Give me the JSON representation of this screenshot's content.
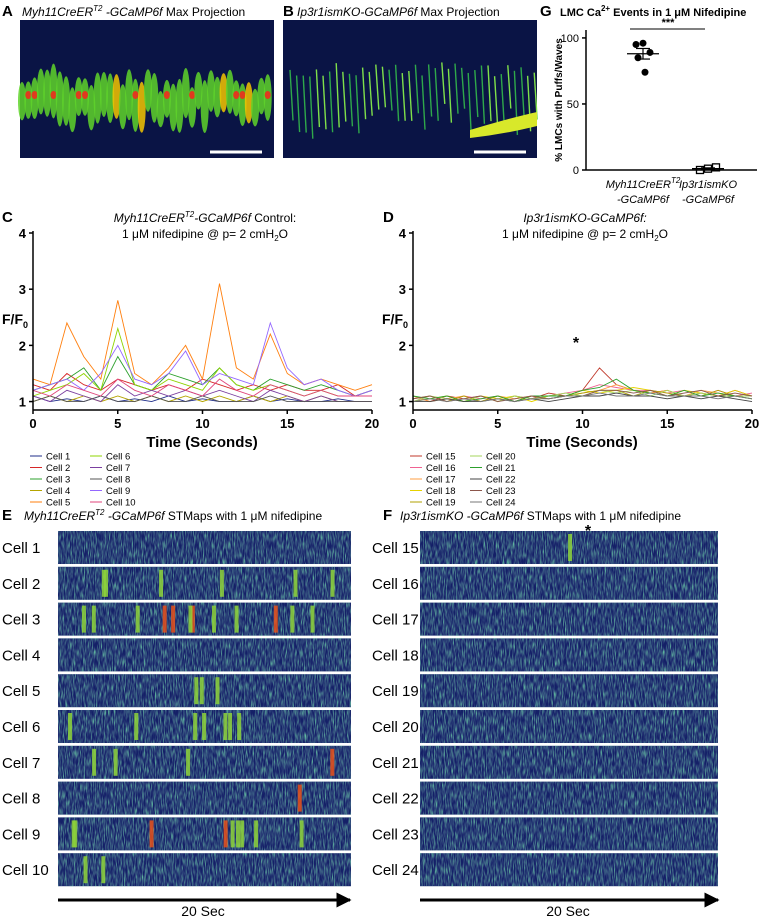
{
  "panels": {
    "A": {
      "label": "A",
      "title": [
        "Myh11CreER",
        "T2",
        " -GCaMP6f",
        " Max Projection"
      ]
    },
    "B": {
      "label": "B",
      "title": [
        "Ip3r1ismKO-GCaMP6f",
        " Max Projection"
      ]
    },
    "E": {
      "label": "E",
      "title": [
        "Myh11CreER",
        "T2",
        " -GCaMP6f",
        " STMaps with 1 μM nifedipine"
      ],
      "cells": [
        "Cell 1",
        "Cell 2",
        "Cell 3",
        "Cell 4",
        "Cell 5",
        "Cell 6",
        "Cell 7",
        "Cell 8",
        "Cell 9",
        "Cell 10"
      ],
      "time_label": "20 Sec"
    },
    "F": {
      "label": "F",
      "title": [
        "Ip3r1ismKO -GCaMP6f",
        " STMaps with 1 μM nifedipine"
      ],
      "cells": [
        "Cell 15",
        "Cell 16",
        "Cell 17",
        "Cell 18",
        "Cell 19",
        "Cell 20",
        "Cell 21",
        "Cell 22",
        "Cell 23",
        "Cell 24"
      ],
      "time_label": "20 Sec",
      "annotation": "*"
    }
  },
  "chart_data": [
    {
      "type": "line",
      "label": "C",
      "title": [
        [
          "Myh11CreER",
          "T2",
          "-GCaMP6f",
          " Control:"
        ],
        [
          "1 μM nifedipine @ p= 2 cmH",
          "2",
          "O"
        ]
      ],
      "ylabel": [
        "F/F",
        "0"
      ],
      "xlabel": "Time (Seconds)",
      "xlim": [
        0,
        20
      ],
      "xticks": [
        0,
        5,
        10,
        15,
        20
      ],
      "ylim": [
        0.85,
        4
      ],
      "yticks": [
        1,
        2,
        3,
        4
      ],
      "x": [
        0,
        1,
        2,
        3,
        4,
        5,
        6,
        7,
        8,
        9,
        10,
        11,
        12,
        13,
        14,
        15,
        16,
        17,
        18,
        19,
        20
      ],
      "series": [
        {
          "name": "Cell 1",
          "color": "#1f2d8a",
          "values": [
            1.1,
            1.0,
            1.05,
            1.0,
            1.1,
            1.0,
            1.05,
            1.0,
            1.1,
            1.0,
            1.05,
            1.0,
            1.0,
            1.1,
            1.0,
            1.05,
            1.0,
            1.0,
            1.05,
            1.0,
            1.0
          ]
        },
        {
          "name": "Cell 2",
          "color": "#d62728",
          "values": [
            1.3,
            1.2,
            1.5,
            1.3,
            1.2,
            1.4,
            1.3,
            1.2,
            1.3,
            1.2,
            1.4,
            1.3,
            1.2,
            1.3,
            1.2,
            1.3,
            1.2,
            1.2,
            1.3,
            1.1,
            1.2
          ]
        },
        {
          "name": "Cell 3",
          "color": "#2ca02c",
          "values": [
            1.2,
            1.3,
            1.4,
            1.6,
            1.2,
            1.8,
            1.3,
            1.2,
            1.5,
            1.4,
            1.3,
            1.6,
            1.3,
            1.2,
            1.4,
            1.3,
            1.2,
            1.3,
            1.2,
            1.1,
            1.2
          ]
        },
        {
          "name": "Cell 4",
          "color": "#b5a400",
          "values": [
            1.0,
            1.1,
            1.0,
            1.1,
            1.0,
            1.1,
            1.0,
            1.1,
            1.0,
            1.1,
            1.0,
            1.1,
            1.0,
            1.1,
            1.0,
            1.1,
            1.0,
            1.1,
            1.0,
            1.0,
            1.0
          ]
        },
        {
          "name": "Cell 5",
          "color": "#ff7f0e",
          "values": [
            1.4,
            1.3,
            2.4,
            1.8,
            1.4,
            2.8,
            1.5,
            1.3,
            1.6,
            2.0,
            1.4,
            3.1,
            1.6,
            1.4,
            2.2,
            1.5,
            1.3,
            1.4,
            1.3,
            1.2,
            1.3
          ]
        },
        {
          "name": "Cell 6",
          "color": "#8fd400",
          "values": [
            1.1,
            1.2,
            1.3,
            1.5,
            1.2,
            2.3,
            1.3,
            1.2,
            1.4,
            1.3,
            1.2,
            1.6,
            1.3,
            1.2,
            1.3,
            1.2,
            1.1,
            1.2,
            1.1,
            1.1,
            1.1
          ]
        },
        {
          "name": "Cell 7",
          "color": "#7b3fa0",
          "values": [
            1.1,
            1.0,
            1.2,
            1.1,
            1.0,
            1.3,
            1.1,
            1.2,
            1.1,
            1.2,
            1.1,
            1.2,
            1.1,
            1.0,
            1.2,
            1.1,
            1.0,
            1.1,
            1.0,
            1.0,
            1.0
          ]
        },
        {
          "name": "Cell 8",
          "color": "#555555",
          "values": [
            1.0,
            1.1,
            1.0,
            1.0,
            1.1,
            1.0,
            1.0,
            1.1,
            1.0,
            1.0,
            1.1,
            1.0,
            1.0,
            1.0,
            1.1,
            1.0,
            1.0,
            1.0,
            1.0,
            1.0,
            1.0
          ]
        },
        {
          "name": "Cell 9",
          "color": "#9467ff",
          "values": [
            1.2,
            1.3,
            1.4,
            1.2,
            1.5,
            2.0,
            1.4,
            1.3,
            1.5,
            1.9,
            1.3,
            1.5,
            1.4,
            1.3,
            2.4,
            1.6,
            1.3,
            1.4,
            1.2,
            1.1,
            1.2
          ]
        },
        {
          "name": "Cell 10",
          "color": "#e0457b",
          "values": [
            1.2,
            1.1,
            1.3,
            1.2,
            1.1,
            1.4,
            1.2,
            1.1,
            1.3,
            1.2,
            1.1,
            1.4,
            1.2,
            1.1,
            1.3,
            1.2,
            1.1,
            1.2,
            1.1,
            1.1,
            1.1
          ]
        }
      ]
    },
    {
      "type": "line",
      "label": "D",
      "title": [
        [
          "Ip3r1ismKO-GCaMP6f:"
        ],
        [
          "1 μM nifedipine @ p= 2 cmH",
          "2",
          "O"
        ]
      ],
      "ylabel": [
        "F/F",
        "0"
      ],
      "xlabel": "Time (Seconds)",
      "annotation": "*",
      "xlim": [
        0,
        20
      ],
      "xticks": [
        0,
        5,
        10,
        15,
        20
      ],
      "ylim": [
        0.85,
        4
      ],
      "yticks": [
        1,
        2,
        3,
        4
      ],
      "x": [
        0,
        1,
        2,
        3,
        4,
        5,
        6,
        7,
        8,
        9,
        10,
        11,
        12,
        13,
        14,
        15,
        16,
        17,
        18,
        19,
        20
      ],
      "series": [
        {
          "name": "Cell 15",
          "color": "#c0392b",
          "values": [
            1.1,
            1.0,
            1.1,
            1.05,
            1.1,
            1.0,
            1.1,
            1.05,
            1.15,
            1.1,
            1.2,
            1.6,
            1.3,
            1.2,
            1.15,
            1.2,
            1.1,
            1.15,
            1.1,
            1.2,
            1.1
          ]
        },
        {
          "name": "Cell 16",
          "color": "#f06292",
          "values": [
            1.0,
            1.1,
            1.0,
            1.1,
            1.05,
            1.1,
            1.0,
            1.1,
            1.1,
            1.15,
            1.2,
            1.3,
            1.25,
            1.2,
            1.2,
            1.15,
            1.2,
            1.1,
            1.2,
            1.1,
            1.15
          ]
        },
        {
          "name": "Cell 17",
          "color": "#ff9f43",
          "values": [
            1.1,
            1.0,
            1.05,
            1.1,
            1.0,
            1.1,
            1.05,
            1.1,
            1.1,
            1.1,
            1.15,
            1.2,
            1.3,
            1.2,
            1.15,
            1.2,
            1.1,
            1.2,
            1.15,
            1.1,
            1.1
          ]
        },
        {
          "name": "Cell 18",
          "color": "#e6d200",
          "values": [
            1.0,
            1.05,
            1.1,
            1.0,
            1.1,
            1.05,
            1.1,
            1.0,
            1.1,
            1.1,
            1.2,
            1.15,
            1.2,
            1.25,
            1.2,
            1.1,
            1.2,
            1.15,
            1.1,
            1.2,
            1.1
          ]
        },
        {
          "name": "Cell 19",
          "color": "#b0a000",
          "values": [
            1.05,
            1.1,
            1.0,
            1.1,
            1.0,
            1.1,
            1.0,
            1.1,
            1.05,
            1.1,
            1.15,
            1.2,
            1.2,
            1.1,
            1.2,
            1.15,
            1.1,
            1.1,
            1.2,
            1.1,
            1.05
          ]
        },
        {
          "name": "Cell 20",
          "color": "#a4d65e",
          "values": [
            1.0,
            1.1,
            1.05,
            1.0,
            1.1,
            1.0,
            1.1,
            1.05,
            1.1,
            1.15,
            1.1,
            1.2,
            1.15,
            1.2,
            1.1,
            1.2,
            1.1,
            1.15,
            1.1,
            1.1,
            1.1
          ]
        },
        {
          "name": "Cell 21",
          "color": "#2ca02c",
          "values": [
            1.1,
            1.05,
            1.1,
            1.0,
            1.05,
            1.1,
            1.0,
            1.1,
            1.1,
            1.1,
            1.2,
            1.25,
            1.4,
            1.2,
            1.15,
            1.1,
            1.2,
            1.1,
            1.15,
            1.1,
            1.05
          ]
        },
        {
          "name": "Cell 22",
          "color": "#444444",
          "values": [
            1.0,
            1.0,
            1.05,
            1.0,
            1.0,
            1.05,
            1.0,
            1.05,
            1.0,
            1.05,
            1.1,
            1.1,
            1.15,
            1.1,
            1.1,
            1.05,
            1.1,
            1.05,
            1.1,
            1.05,
            1.0
          ]
        },
        {
          "name": "Cell 23",
          "color": "#8c564b",
          "values": [
            1.05,
            1.1,
            1.0,
            1.05,
            1.1,
            1.0,
            1.05,
            1.1,
            1.05,
            1.1,
            1.1,
            1.2,
            1.2,
            1.15,
            1.2,
            1.1,
            1.15,
            1.2,
            1.1,
            1.15,
            1.1
          ]
        },
        {
          "name": "Cell 24",
          "color": "#777777",
          "values": [
            1.0,
            1.05,
            1.0,
            1.05,
            1.0,
            1.05,
            1.0,
            1.05,
            1.05,
            1.1,
            1.1,
            1.15,
            1.1,
            1.1,
            1.15,
            1.1,
            1.1,
            1.1,
            1.05,
            1.1,
            1.05
          ]
        }
      ]
    },
    {
      "type": "dot",
      "label": "G",
      "title": [
        "LMC Ca",
        "2+",
        " Events in 1 μM Nifedipine"
      ],
      "ylabel": "% LMCs with Puffs/Waves",
      "significance": "***",
      "category_labels": [
        [
          "Myh11CreER",
          "T2",
          "-GCaMP6f"
        ],
        [
          "Ip3r1ismKO",
          "-GCaMP6f"
        ]
      ],
      "ylim": [
        0,
        106
      ],
      "yticks": [
        0,
        50,
        100
      ],
      "groups": [
        {
          "values": [
            96,
            95,
            89,
            85,
            74
          ],
          "mean": 88,
          "sem": 4,
          "color": "#000000",
          "marker": "filled-circle"
        },
        {
          "values": [
            0,
            1,
            2
          ],
          "mean": 1,
          "sem": 0.6,
          "color": "#000000",
          "marker": "open-square"
        }
      ]
    }
  ]
}
